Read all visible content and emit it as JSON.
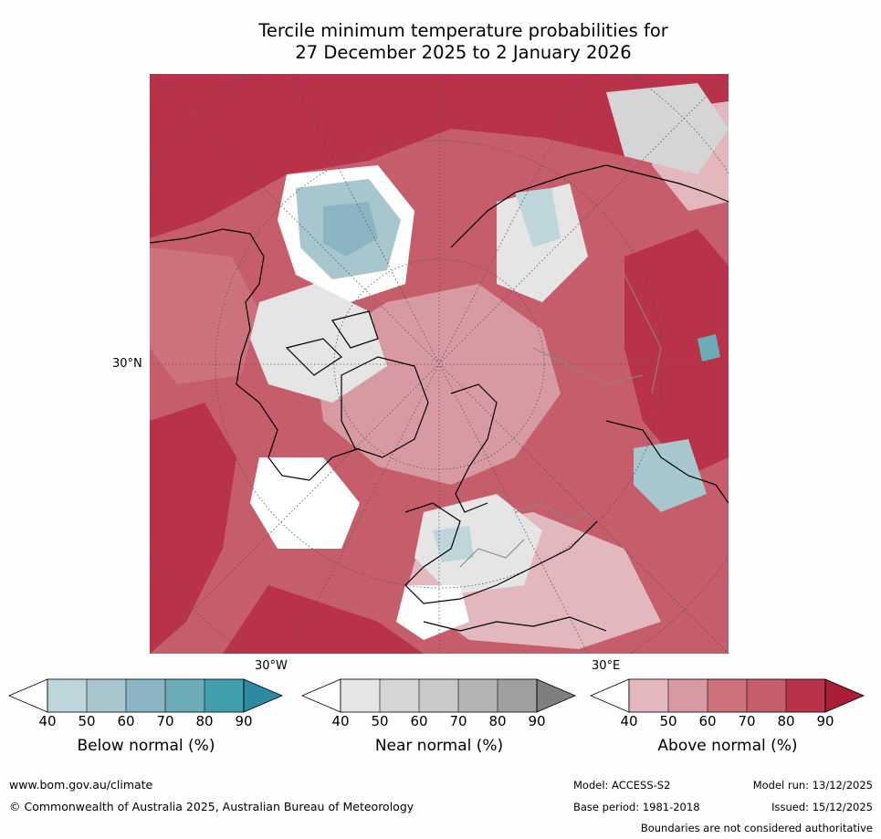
{
  "title": {
    "line1": "Tercile minimum temperature probabilities for",
    "line2": "27 December 2025 to 2 January 2026"
  },
  "map": {
    "lat_label": "30°N",
    "lon_labels": {
      "left": "30°W",
      "right": "30°E"
    },
    "colors": {
      "above": [
        "#e2b7bd",
        "#d89aa2",
        "#cc727d",
        "#c65d6b",
        "#b83349",
        "#a91d37"
      ],
      "below": [
        "#bed5dc",
        "#a7c6cd",
        "#8bb5c3",
        "#6cabb8",
        "#419ead",
        "#2d8aa1"
      ],
      "near": [
        "#e5e5e5",
        "#d5d5d5",
        "#c9c9c9",
        "#b4b4b4",
        "#a09e9e",
        "#7f7f7f"
      ],
      "white": "#ffffff"
    }
  },
  "colorbars": [
    {
      "name": "below",
      "label": "Below normal (%)",
      "ticks": [
        "40",
        "50",
        "60",
        "70",
        "80",
        "90"
      ],
      "colors": [
        "#ffffff",
        "#bed5dc",
        "#a7c6cd",
        "#8bb5c3",
        "#6cabb8",
        "#419ead",
        "#2d8aa1"
      ]
    },
    {
      "name": "near",
      "label": "Near normal (%)",
      "ticks": [
        "40",
        "50",
        "60",
        "70",
        "80",
        "90"
      ],
      "colors": [
        "#ffffff",
        "#e5e5e5",
        "#d5d5d5",
        "#c9c9c9",
        "#b4b4b4",
        "#a09e9e",
        "#7f7f7f"
      ]
    },
    {
      "name": "above",
      "label": "Above normal (%)",
      "ticks": [
        "40",
        "50",
        "60",
        "70",
        "80",
        "90"
      ],
      "colors": [
        "#ffffff",
        "#e2b7bd",
        "#d89aa2",
        "#cc727d",
        "#c65d6b",
        "#b83349",
        "#a91d37"
      ]
    }
  ],
  "footer": {
    "url": "www.bom.gov.au/climate",
    "copyright": "© Commonwealth of Australia 2025, Australian Bureau of Meteorology",
    "model": "Model: ACCESS-S2",
    "model_run": "Model run: 13/12/2025",
    "base_period": "Base period: 1981-2018",
    "issued": "Issued: 15/12/2025",
    "disclaimer": "Boundaries are not considered authoritative"
  }
}
